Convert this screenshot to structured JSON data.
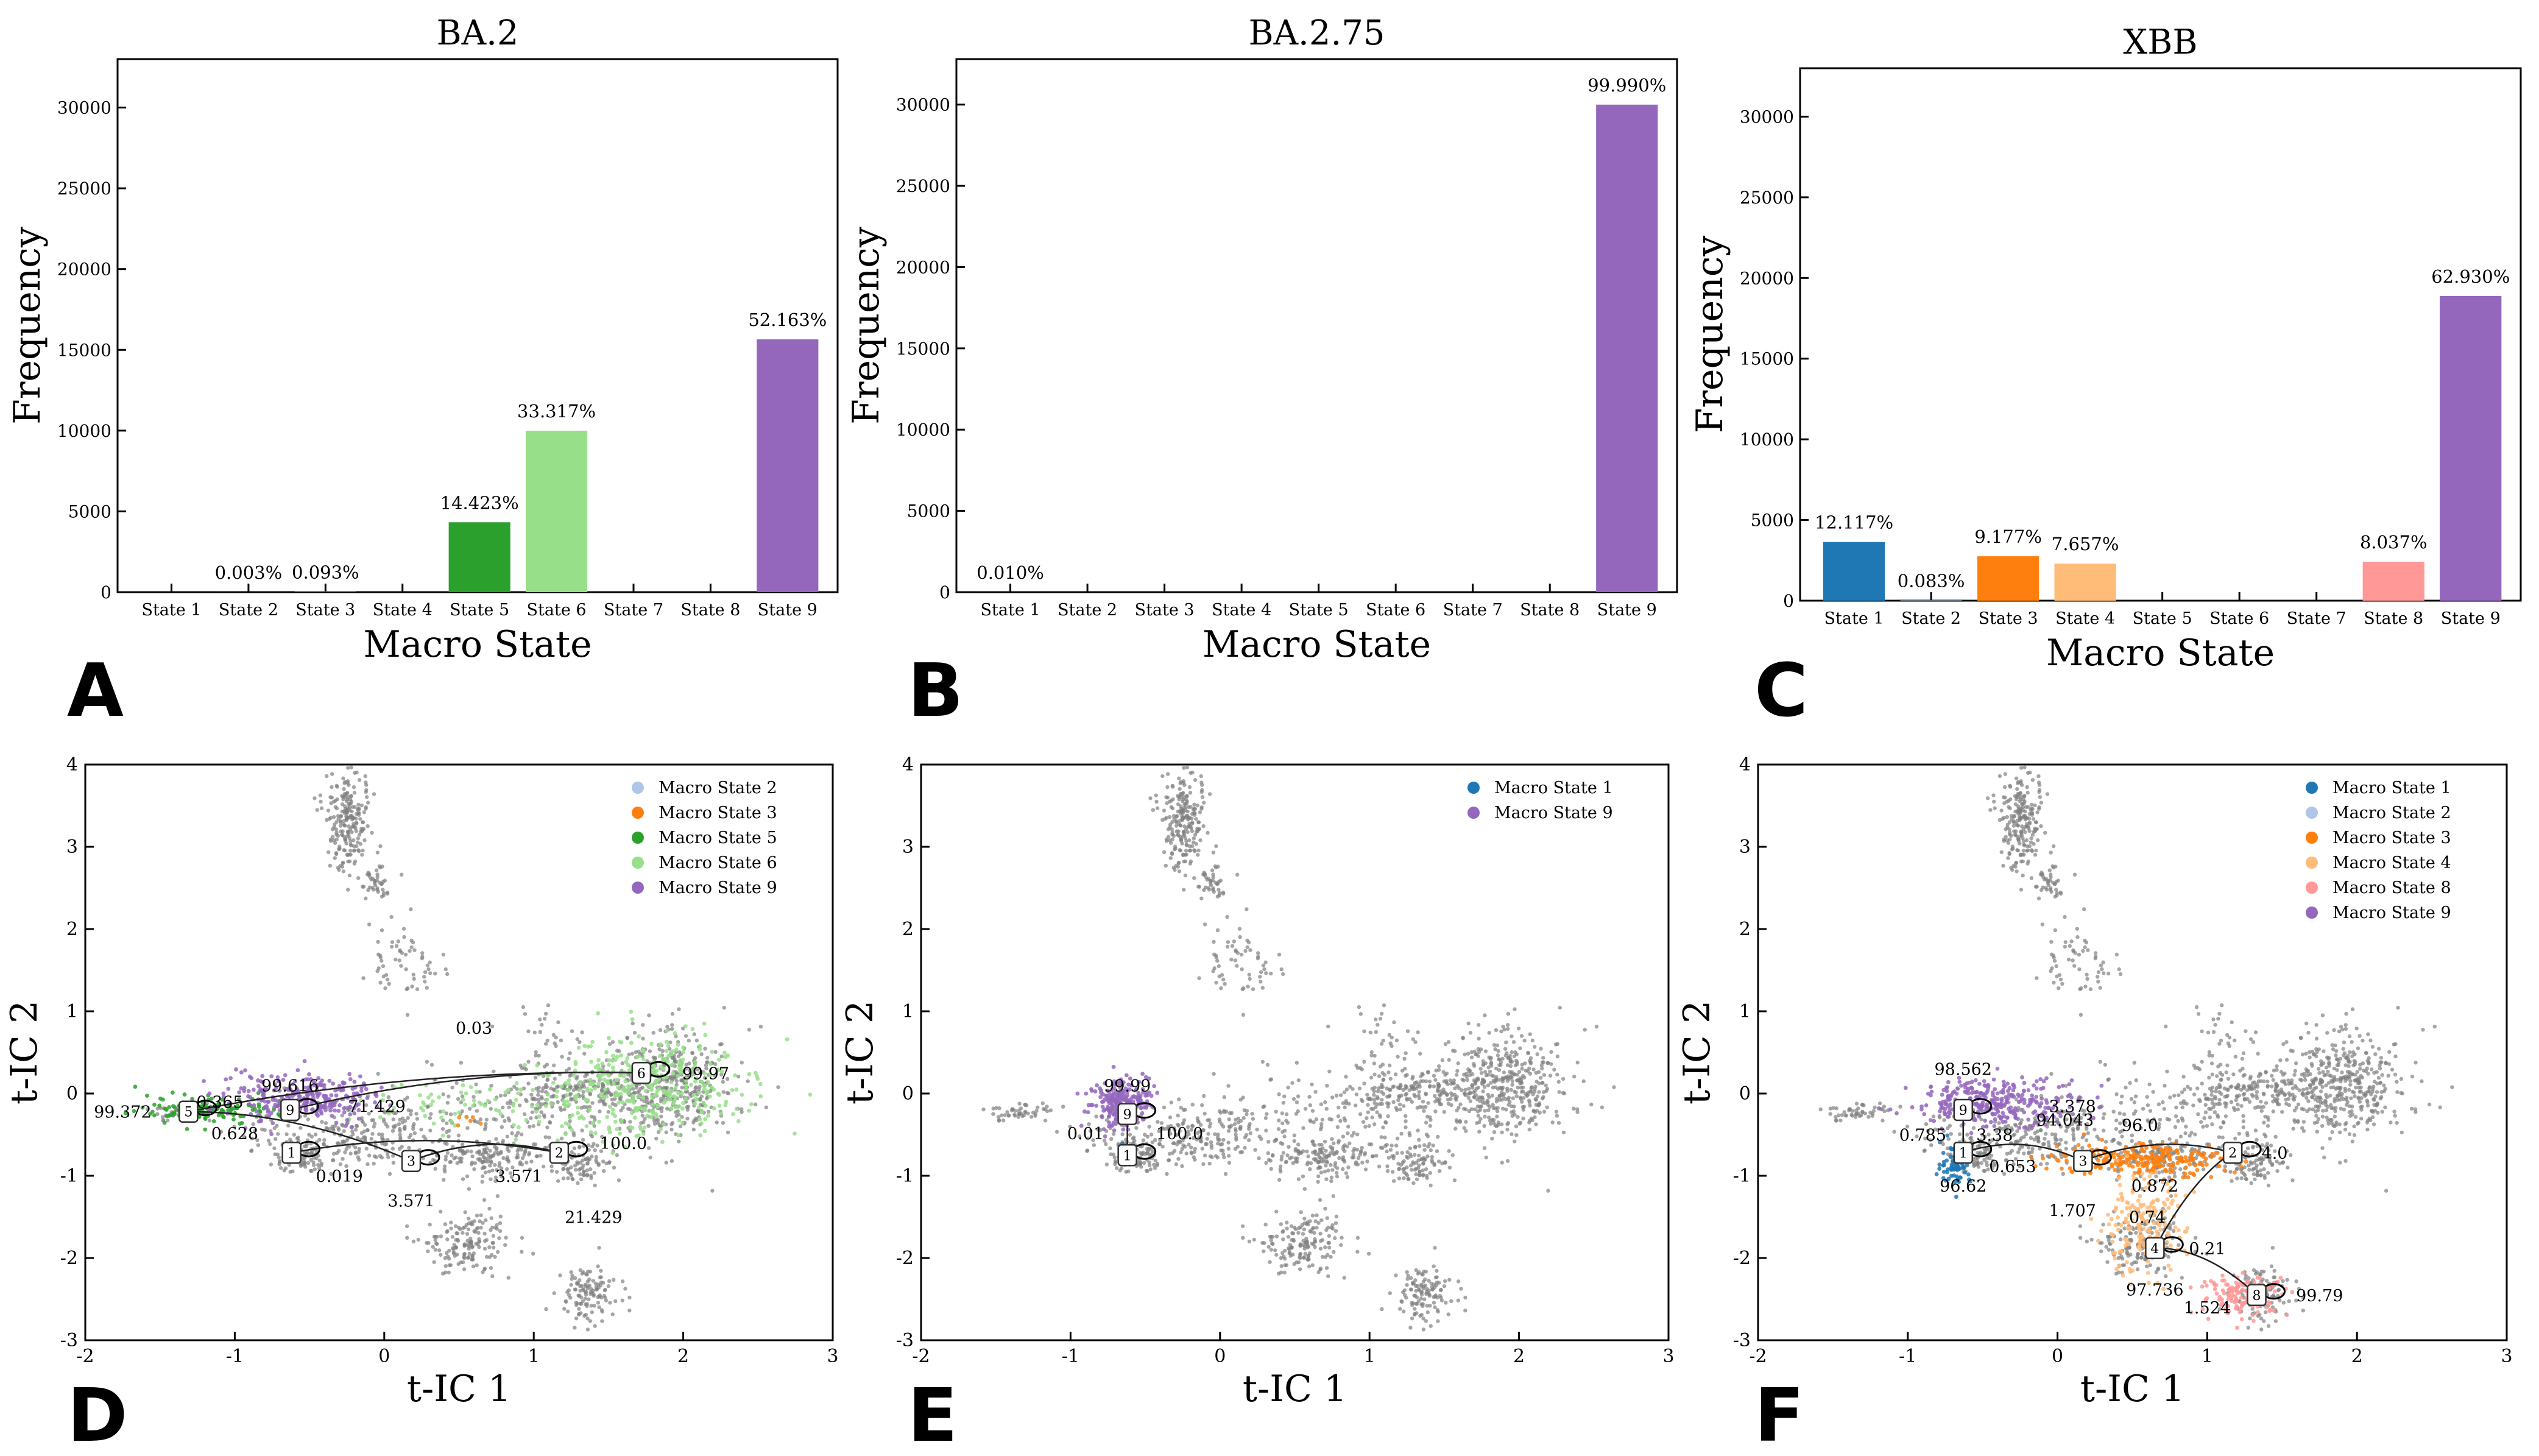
{
  "colors": {
    "state1": "#1f77b4",
    "state2": "#aec7e8",
    "state3": "#ff7f0e",
    "state4": "#ffbb78",
    "state5": "#2ca02c",
    "state6": "#98df8a",
    "state8": "#ff9896",
    "state9": "#9467bd",
    "background_points": "#808080"
  },
  "chart_data": [
    {
      "type": "bar",
      "panel": "A",
      "title": "BA.2",
      "xlabel": "Macro State",
      "ylabel": "Frequency",
      "categories": [
        "State 1",
        "State 2",
        "State 3",
        "State 4",
        "State 5",
        "State 6",
        "State 7",
        "State 8",
        "State 9"
      ],
      "values": [
        0,
        1,
        28,
        0,
        4327,
        9995,
        0,
        0,
        15649
      ],
      "bar_labels": [
        "",
        "0.003%",
        "0.093%",
        "",
        "14.423%",
        "33.317%",
        "",
        "",
        "52.163%"
      ],
      "bar_colors": [
        "#1f77b4",
        "#aec7e8",
        "#ff7f0e",
        "#ffbb78",
        "#2ca02c",
        "#98df8a",
        "#d62728",
        "#ff9896",
        "#9467bd"
      ],
      "ylim": [
        0,
        33000
      ],
      "yticks": [
        0,
        5000,
        10000,
        15000,
        20000,
        25000,
        30000
      ]
    },
    {
      "type": "bar",
      "panel": "B",
      "title": "BA.2.75",
      "xlabel": "Macro State",
      "ylabel": "Frequency",
      "categories": [
        "State 1",
        "State 2",
        "State 3",
        "State 4",
        "State 5",
        "State 6",
        "State 7",
        "State 8",
        "State 9"
      ],
      "values": [
        3,
        0,
        0,
        0,
        0,
        0,
        0,
        0,
        29997
      ],
      "bar_labels": [
        "0.010%",
        "",
        "",
        "",
        "",
        "",
        "",
        "",
        "99.990%"
      ],
      "bar_colors": [
        "#1f77b4",
        "#aec7e8",
        "#ff7f0e",
        "#ffbb78",
        "#2ca02c",
        "#98df8a",
        "#d62728",
        "#ff9896",
        "#9467bd"
      ],
      "ylim": [
        0,
        32800
      ],
      "yticks": [
        0,
        5000,
        10000,
        15000,
        20000,
        25000,
        30000
      ]
    },
    {
      "type": "bar",
      "panel": "C",
      "title": "XBB",
      "xlabel": "Macro State",
      "ylabel": "Frequency",
      "categories": [
        "State 1",
        "State 2",
        "State 3",
        "State 4",
        "State 5",
        "State 6",
        "State 7",
        "State 8",
        "State 9"
      ],
      "values": [
        3635,
        25,
        2753,
        2297,
        0,
        0,
        0,
        2411,
        18879
      ],
      "bar_labels": [
        "12.117%",
        "0.083%",
        "9.177%",
        "7.657%",
        "",
        "",
        "",
        "8.037%",
        "62.930%"
      ],
      "bar_colors": [
        "#1f77b4",
        "#aec7e8",
        "#ff7f0e",
        "#ffbb78",
        "#2ca02c",
        "#98df8a",
        "#d62728",
        "#ff9896",
        "#9467bd"
      ],
      "ylim": [
        0,
        33000
      ],
      "yticks": [
        0,
        5000,
        10000,
        15000,
        20000,
        25000,
        30000
      ]
    },
    {
      "type": "scatter",
      "panel": "D",
      "xlabel": "t-IC 1",
      "ylabel": "t-IC 2",
      "xlim": [
        -2,
        3
      ],
      "ylim": [
        -3,
        4
      ],
      "xticks": [
        -2,
        -1,
        0,
        1,
        2,
        3
      ],
      "yticks": [
        -3,
        -2,
        -1,
        0,
        1,
        2,
        3,
        4
      ],
      "legend_position": "top-right",
      "legend": [
        {
          "label": "Macro State 2",
          "color": "#aec7e8"
        },
        {
          "label": "Macro State 3",
          "color": "#ff7f0e"
        },
        {
          "label": "Macro State 5",
          "color": "#2ca02c"
        },
        {
          "label": "Macro State 6",
          "color": "#98df8a"
        },
        {
          "label": "Macro State 9",
          "color": "#9467bd"
        }
      ],
      "clusters": [
        {
          "color": "#98df8a",
          "cx": 1.8,
          "cy": 0.1,
          "sx": 0.3,
          "sy": 0.3,
          "n": 320
        },
        {
          "color": "#98df8a",
          "cx": 1.0,
          "cy": -0.1,
          "sx": 0.6,
          "sy": 0.2,
          "n": 140
        },
        {
          "color": "#2ca02c",
          "cx": -1.2,
          "cy": -0.2,
          "sx": 0.2,
          "sy": 0.08,
          "n": 140
        },
        {
          "color": "#9467bd",
          "cx": -0.55,
          "cy": -0.05,
          "sx": 0.25,
          "sy": 0.14,
          "n": 300
        },
        {
          "color": "#ff7f0e",
          "cx": 0.55,
          "cy": -0.3,
          "sx": 0.05,
          "sy": 0.05,
          "n": 6
        }
      ],
      "nodes": [
        {
          "label": "1",
          "x": -0.62,
          "y": -0.72
        },
        {
          "label": "2",
          "x": 1.17,
          "y": -0.72
        },
        {
          "label": "3",
          "x": 0.18,
          "y": -0.82
        },
        {
          "label": "5",
          "x": -1.31,
          "y": -0.22
        },
        {
          "label": "6",
          "x": 1.72,
          "y": 0.25
        },
        {
          "label": "9",
          "x": -0.63,
          "y": -0.2
        }
      ],
      "annotations": [
        {
          "text": "99.372",
          "x": -1.75,
          "y": -0.22
        },
        {
          "text": "0.365",
          "x": -1.1,
          "y": -0.1
        },
        {
          "text": "0.628",
          "x": -1.0,
          "y": -0.48
        },
        {
          "text": "99.616",
          "x": -0.63,
          "y": 0.1
        },
        {
          "text": "71.429",
          "x": -0.05,
          "y": -0.15
        },
        {
          "text": "0.019",
          "x": -0.3,
          "y": -1.0
        },
        {
          "text": "3.571",
          "x": 0.18,
          "y": -1.3
        },
        {
          "text": "3.571",
          "x": 0.9,
          "y": -1.0
        },
        {
          "text": "100.0",
          "x": 1.6,
          "y": -0.6
        },
        {
          "text": "21.429",
          "x": 1.4,
          "y": -1.5
        },
        {
          "text": "0.03",
          "x": 0.6,
          "y": 0.8
        },
        {
          "text": "99.97",
          "x": 2.15,
          "y": 0.25
        }
      ]
    },
    {
      "type": "scatter",
      "panel": "E",
      "xlabel": "t-IC 1",
      "ylabel": "t-IC 2",
      "xlim": [
        -2,
        3
      ],
      "ylim": [
        -3,
        4
      ],
      "xticks": [
        -2,
        -1,
        0,
        1,
        2,
        3
      ],
      "yticks": [
        -3,
        -2,
        -1,
        0,
        1,
        2,
        3,
        4
      ],
      "legend_position": "top-right",
      "legend": [
        {
          "label": "Macro State 1",
          "color": "#1f77b4"
        },
        {
          "label": "Macro State 9",
          "color": "#9467bd"
        }
      ],
      "clusters": [
        {
          "color": "#9467bd",
          "cx": -0.65,
          "cy": -0.1,
          "sx": 0.1,
          "sy": 0.15,
          "n": 240
        },
        {
          "color": "#1f77b4",
          "cx": -0.62,
          "cy": -0.72,
          "sx": 0.02,
          "sy": 0.05,
          "n": 6
        }
      ],
      "nodes": [
        {
          "label": "9",
          "x": -0.62,
          "y": -0.25
        },
        {
          "label": "1",
          "x": -0.62,
          "y": -0.75
        }
      ],
      "annotations": [
        {
          "text": "99.99",
          "x": -0.62,
          "y": 0.1
        },
        {
          "text": "0.01",
          "x": -0.9,
          "y": -0.48
        },
        {
          "text": "100.0",
          "x": -0.27,
          "y": -0.48
        }
      ]
    },
    {
      "type": "scatter",
      "panel": "F",
      "xlabel": "t-IC 1",
      "ylabel": "t-IC 2",
      "xlim": [
        -2,
        3
      ],
      "ylim": [
        -3,
        4
      ],
      "xticks": [
        -2,
        -1,
        0,
        1,
        2,
        3
      ],
      "yticks": [
        -3,
        -2,
        -1,
        0,
        1,
        2,
        3,
        4
      ],
      "legend_position": "top-right",
      "legend": [
        {
          "label": "Macro State 1",
          "color": "#1f77b4"
        },
        {
          "label": "Macro State 2",
          "color": "#aec7e8"
        },
        {
          "label": "Macro State 3",
          "color": "#ff7f0e"
        },
        {
          "label": "Macro State 4",
          "color": "#ffbb78"
        },
        {
          "label": "Macro State 8",
          "color": "#ff9896"
        },
        {
          "label": "Macro State 9",
          "color": "#9467bd"
        }
      ],
      "clusters": [
        {
          "color": "#9467bd",
          "cx": -0.4,
          "cy": -0.1,
          "sx": 0.28,
          "sy": 0.14,
          "n": 320
        },
        {
          "color": "#ff7f0e",
          "cx": 0.55,
          "cy": -0.8,
          "sx": 0.3,
          "sy": 0.1,
          "n": 260
        },
        {
          "color": "#ffbb78",
          "cx": 0.55,
          "cy": -1.6,
          "sx": 0.15,
          "sy": 0.3,
          "n": 180
        },
        {
          "color": "#ff9896",
          "cx": 1.25,
          "cy": -2.45,
          "sx": 0.15,
          "sy": 0.12,
          "n": 140
        },
        {
          "color": "#1f77b4",
          "cx": -0.68,
          "cy": -0.85,
          "sx": 0.05,
          "sy": 0.12,
          "n": 80
        },
        {
          "color": "#aec7e8",
          "cx": 1.17,
          "cy": -0.7,
          "sx": 0.02,
          "sy": 0.02,
          "n": 4
        }
      ],
      "nodes": [
        {
          "label": "9",
          "x": -0.63,
          "y": -0.2
        },
        {
          "label": "1",
          "x": -0.63,
          "y": -0.72
        },
        {
          "label": "3",
          "x": 0.17,
          "y": -0.82
        },
        {
          "label": "2",
          "x": 1.17,
          "y": -0.72
        },
        {
          "label": "4",
          "x": 0.65,
          "y": -1.88
        },
        {
          "label": "8",
          "x": 1.33,
          "y": -2.45
        }
      ],
      "annotations": [
        {
          "text": "98.562",
          "x": -0.63,
          "y": 0.3
        },
        {
          "text": "3.378",
          "x": 0.1,
          "y": -0.15
        },
        {
          "text": "94.043",
          "x": 0.05,
          "y": -0.32
        },
        {
          "text": "0.785",
          "x": -0.9,
          "y": -0.5
        },
        {
          "text": "3.38",
          "x": -0.42,
          "y": -0.5
        },
        {
          "text": "0.653",
          "x": -0.3,
          "y": -0.88
        },
        {
          "text": "96.0",
          "x": 0.55,
          "y": -0.38
        },
        {
          "text": "4.0",
          "x": 1.45,
          "y": -0.72
        },
        {
          "text": "96.62",
          "x": -0.63,
          "y": -1.12
        },
        {
          "text": "0.872",
          "x": 0.65,
          "y": -1.12
        },
        {
          "text": "0.74",
          "x": 0.6,
          "y": -1.5
        },
        {
          "text": "1.707",
          "x": 0.1,
          "y": -1.42
        },
        {
          "text": "0.21",
          "x": 1.0,
          "y": -1.88
        },
        {
          "text": "97.736",
          "x": 0.65,
          "y": -2.38
        },
        {
          "text": "1.524",
          "x": 1.0,
          "y": -2.6
        },
        {
          "text": "99.79",
          "x": 1.75,
          "y": -2.45
        }
      ]
    }
  ]
}
